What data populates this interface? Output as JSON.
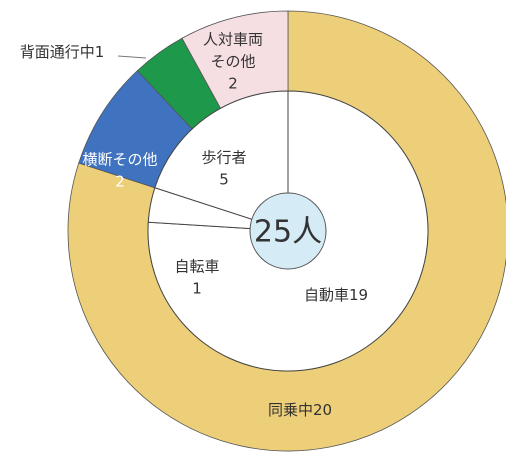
{
  "chart_data": {
    "type": "donut",
    "center_label": "25人",
    "outer": {
      "categories": [
        "同乗中",
        "横断その他",
        "背面通行中",
        [
          "人対車両",
          "その他"
        ]
      ],
      "values": [
        20,
        2,
        1,
        2
      ],
      "colors": [
        "#eccf78",
        "#3f72bf",
        "#1e984a",
        "#f6dfe2"
      ]
    },
    "inner": {
      "categories": [
        "自動車",
        "自転車",
        "歩行者"
      ],
      "values": [
        19,
        1,
        5
      ],
      "color": "#ffffff"
    }
  }
}
